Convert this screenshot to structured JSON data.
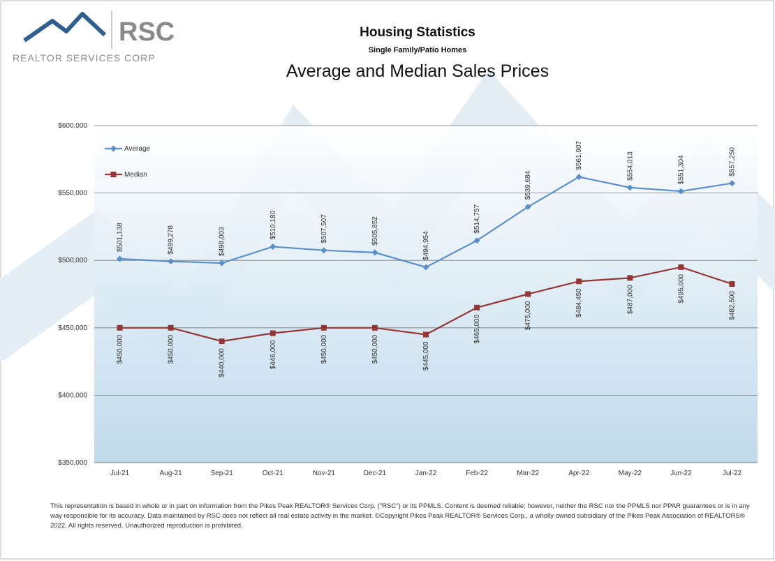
{
  "header": {
    "logo": "RSC",
    "company": "REALTOR SERVICES CORP",
    "heading": "Housing Statistics",
    "subheading": "Single Family/Patio Homes"
  },
  "chart_data": {
    "type": "line",
    "title": "Average and Median Sales Prices",
    "categories": [
      "Jul-21",
      "Aug-21",
      "Sep-21",
      "Oct-21",
      "Nov-21",
      "Dec-21",
      "Jan-22",
      "Feb-22",
      "Mar-22",
      "Apr-22",
      "May-22",
      "Jun-22",
      "Jul-22"
    ],
    "series": [
      {
        "name": "Average",
        "color": "#5b8fc9",
        "marker": "diamond",
        "values": [
          501138,
          499278,
          498003,
          510180,
          507507,
          505852,
          494954,
          514757,
          539684,
          561907,
          554013,
          551304,
          557250
        ],
        "value_labels": [
          "$501,138",
          "$499,278",
          "$498,003",
          "$510,180",
          "$507,507",
          "$505,852",
          "$494,954",
          "$514,757",
          "$539,684",
          "$561,907",
          "$554,013",
          "$551,304",
          "$557,250"
        ]
      },
      {
        "name": "Median",
        "color": "#943634",
        "marker": "square",
        "values": [
          450000,
          450000,
          440000,
          446000,
          450000,
          450000,
          445000,
          465000,
          475000,
          484450,
          487000,
          495000,
          482500
        ],
        "value_labels": [
          "$450,000",
          "$450,000",
          "$440,000",
          "$446,000",
          "$450,000",
          "$450,000",
          "$445,000",
          "$465,000",
          "$475,000",
          "$484,450",
          "$487,000",
          "$495,000",
          "$482,500"
        ]
      }
    ],
    "ylim": [
      350000,
      600000
    ],
    "yticks": [
      {
        "value": 350000,
        "label": "$350,000"
      },
      {
        "value": 400000,
        "label": "$400,000"
      },
      {
        "value": 450000,
        "label": "$450,000"
      },
      {
        "value": 500000,
        "label": "$500,000"
      },
      {
        "value": 550000,
        "label": "$550,000"
      },
      {
        "value": 600000,
        "label": "$600,000"
      }
    ],
    "grid": true,
    "legend": "upper left"
  },
  "footnote": "This representation is based in whole or in part on information from the Pikes Peak REALTOR® Services Corp. (\"RSC\") or its PPMLS. Content is deemed reliable; however, neither the RSC nor the PPMLS nor PPAR guarantees or is in any way responsible for its accuracy. Data maintained by RSC does not reflect all real estate activity in the market. ©Copyright Pikes Peak REALTOR® Services Corp., a wholly owned subsidiary of the Pikes Peak Association of REALTORS® 2022. All rights reserved. Unauthorized reproduction is prohibited."
}
